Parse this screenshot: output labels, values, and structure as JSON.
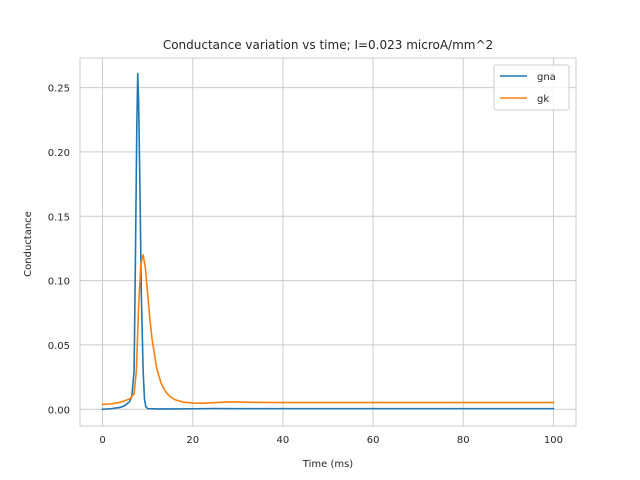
{
  "chart_data": {
    "type": "line",
    "title": "Conductance variation vs time; I=0.023 microA/mm^2",
    "xlabel": "Time (ms)",
    "ylabel": "Conductance",
    "xlim": [
      -5,
      105
    ],
    "ylim": [
      -0.013,
      0.273
    ],
    "xticks": [
      0,
      20,
      40,
      60,
      80,
      100
    ],
    "yticks": [
      0.0,
      0.05,
      0.1,
      0.15,
      0.2,
      0.25
    ],
    "xtick_labels": [
      "0",
      "20",
      "40",
      "60",
      "80",
      "100"
    ],
    "ytick_labels": [
      "0.00",
      "0.05",
      "0.10",
      "0.15",
      "0.20",
      "0.25"
    ],
    "grid": true,
    "legend_position": "top-right",
    "series": [
      {
        "name": "gna",
        "color": "#1f77b4",
        "x": [
          0,
          2,
          4,
          5,
          6,
          6.5,
          7,
          7.3,
          7.6,
          7.8,
          8.0,
          8.3,
          8.6,
          9.0,
          9.3,
          9.6,
          10,
          12,
          15,
          20,
          25,
          30,
          40,
          50,
          60,
          70,
          80,
          90,
          100
        ],
        "y": [
          0.0,
          0.0005,
          0.0015,
          0.003,
          0.006,
          0.01,
          0.03,
          0.12,
          0.22,
          0.261,
          0.24,
          0.17,
          0.09,
          0.03,
          0.008,
          0.002,
          0.0005,
          0.0003,
          0.0003,
          0.0004,
          0.0006,
          0.0005,
          0.0005,
          0.0005,
          0.0005,
          0.0005,
          0.0005,
          0.0005,
          0.0005
        ]
      },
      {
        "name": "gk",
        "color": "#ff7f0e",
        "x": [
          0,
          2,
          4,
          6,
          7,
          7.5,
          8,
          8.5,
          9.0,
          9.5,
          10,
          10.5,
          11,
          12,
          13,
          14,
          15,
          16,
          18,
          20,
          22,
          25,
          28,
          30,
          35,
          40,
          50,
          60,
          70,
          80,
          90,
          100
        ],
        "y": [
          0.0038,
          0.0042,
          0.0055,
          0.008,
          0.012,
          0.03,
          0.08,
          0.113,
          0.12,
          0.11,
          0.09,
          0.07,
          0.054,
          0.032,
          0.02,
          0.0135,
          0.0098,
          0.0075,
          0.0055,
          0.0048,
          0.0047,
          0.0052,
          0.0057,
          0.0056,
          0.0053,
          0.0052,
          0.0052,
          0.0052,
          0.0052,
          0.0052,
          0.0052,
          0.0052
        ]
      }
    ]
  }
}
